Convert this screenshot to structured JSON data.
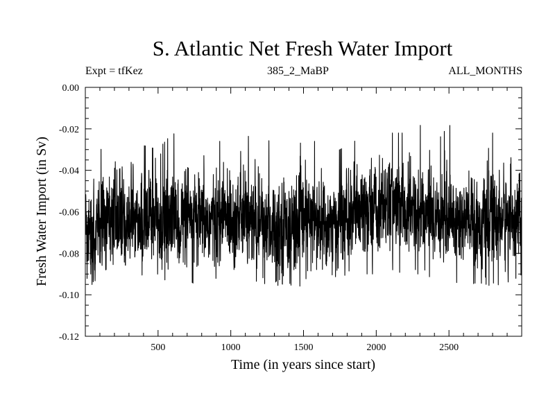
{
  "chart_data": {
    "type": "line",
    "title": "S. Atlantic Net Fresh Water Import",
    "subtitle_left": "Expt = tfKez",
    "subtitle_center": "385_2_MaBP",
    "subtitle_right": "ALL_MONTHS",
    "xlabel": "Time (in years since start)",
    "ylabel": "Fresh Water Import (in Sv)",
    "xlim": [
      0,
      3000
    ],
    "ylim": [
      -0.12,
      0.0
    ],
    "xticks": [
      500,
      1000,
      1500,
      2000,
      2500
    ],
    "xtick_labels": [
      "500",
      "1000",
      "1500",
      "2000",
      "2500"
    ],
    "yticks": [
      0.0,
      -0.02,
      -0.04,
      -0.06,
      -0.08,
      -0.1,
      -0.12
    ],
    "ytick_labels": [
      "0.00",
      "-0.02",
      "-0.04",
      "-0.06",
      "-0.08",
      "-0.10",
      "-0.12"
    ],
    "grid": false,
    "line_color": "#000000",
    "series": [
      {
        "x": [
          0,
          100,
          200,
          300,
          400,
          500,
          600,
          700,
          800,
          900,
          1000,
          1100,
          1200,
          1300,
          1400,
          1500,
          1600,
          1700,
          1800,
          1900,
          2000,
          2100,
          2200,
          2300,
          2400,
          2500,
          2600,
          2700,
          2800,
          2900,
          3000
        ],
        "mean": [
          -0.07,
          -0.068,
          -0.064,
          -0.063,
          -0.065,
          -0.066,
          -0.064,
          -0.065,
          -0.066,
          -0.064,
          -0.062,
          -0.063,
          -0.066,
          -0.067,
          -0.066,
          -0.065,
          -0.066,
          -0.067,
          -0.064,
          -0.061,
          -0.058,
          -0.056,
          -0.06,
          -0.062,
          -0.062,
          -0.063,
          -0.065,
          -0.066,
          -0.064,
          -0.063,
          -0.063
        ],
        "upper_extremes": [
          -0.052,
          -0.03,
          -0.028,
          -0.016,
          -0.028,
          -0.03,
          -0.022,
          -0.026,
          -0.03,
          -0.026,
          -0.026,
          -0.024,
          -0.022,
          -0.028,
          -0.03,
          -0.026,
          -0.026,
          -0.032,
          -0.028,
          -0.024,
          -0.03,
          -0.022,
          -0.022,
          -0.018,
          -0.028,
          -0.018,
          -0.024,
          -0.024,
          -0.022,
          -0.02,
          -0.034
        ],
        "lower_extremes": [
          -0.1,
          -0.09,
          -0.085,
          -0.086,
          -0.092,
          -0.09,
          -0.096,
          -0.092,
          -0.098,
          -0.092,
          -0.09,
          -0.092,
          -0.094,
          -0.096,
          -0.094,
          -0.104,
          -0.096,
          -0.094,
          -0.09,
          -0.09,
          -0.09,
          -0.088,
          -0.09,
          -0.09,
          -0.092,
          -0.092,
          -0.096,
          -0.094,
          -0.096,
          -0.094,
          -0.092
        ]
      }
    ]
  }
}
